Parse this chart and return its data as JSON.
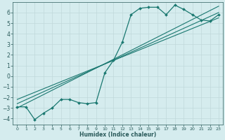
{
  "background_color": "#d5ecee",
  "grid_color": "#c0d8da",
  "line_color": "#1a7870",
  "xlabel": "Humidex (Indice chaleur)",
  "xlim": [
    -0.5,
    23.5
  ],
  "ylim": [
    -4.6,
    7.0
  ],
  "yticks": [
    -4,
    -3,
    -2,
    -1,
    0,
    1,
    2,
    3,
    4,
    5,
    6
  ],
  "xticks": [
    0,
    1,
    2,
    3,
    4,
    5,
    6,
    7,
    8,
    9,
    10,
    11,
    12,
    13,
    14,
    15,
    16,
    17,
    18,
    19,
    20,
    21,
    22,
    23
  ],
  "line1_x": [
    0,
    1,
    2,
    3,
    4,
    5,
    6,
    7,
    8,
    9,
    10,
    11,
    12,
    13,
    14,
    15,
    16,
    17,
    18,
    19,
    20,
    21,
    22,
    23
  ],
  "line1_y": [
    -2.9,
    -2.9,
    -4.1,
    -3.5,
    -3.0,
    -2.2,
    -2.2,
    -2.5,
    -2.6,
    -2.5,
    0.3,
    1.5,
    3.2,
    5.8,
    6.4,
    6.5,
    6.5,
    5.8,
    6.7,
    6.3,
    5.8,
    5.3,
    5.2,
    5.8
  ],
  "line2_x": [
    0,
    23
  ],
  "line2_y": [
    -3.0,
    6.6
  ],
  "line3_x": [
    0,
    23
  ],
  "line3_y": [
    -2.6,
    6.0
  ],
  "line4_x": [
    0,
    23
  ],
  "line4_y": [
    -2.2,
    5.5
  ]
}
